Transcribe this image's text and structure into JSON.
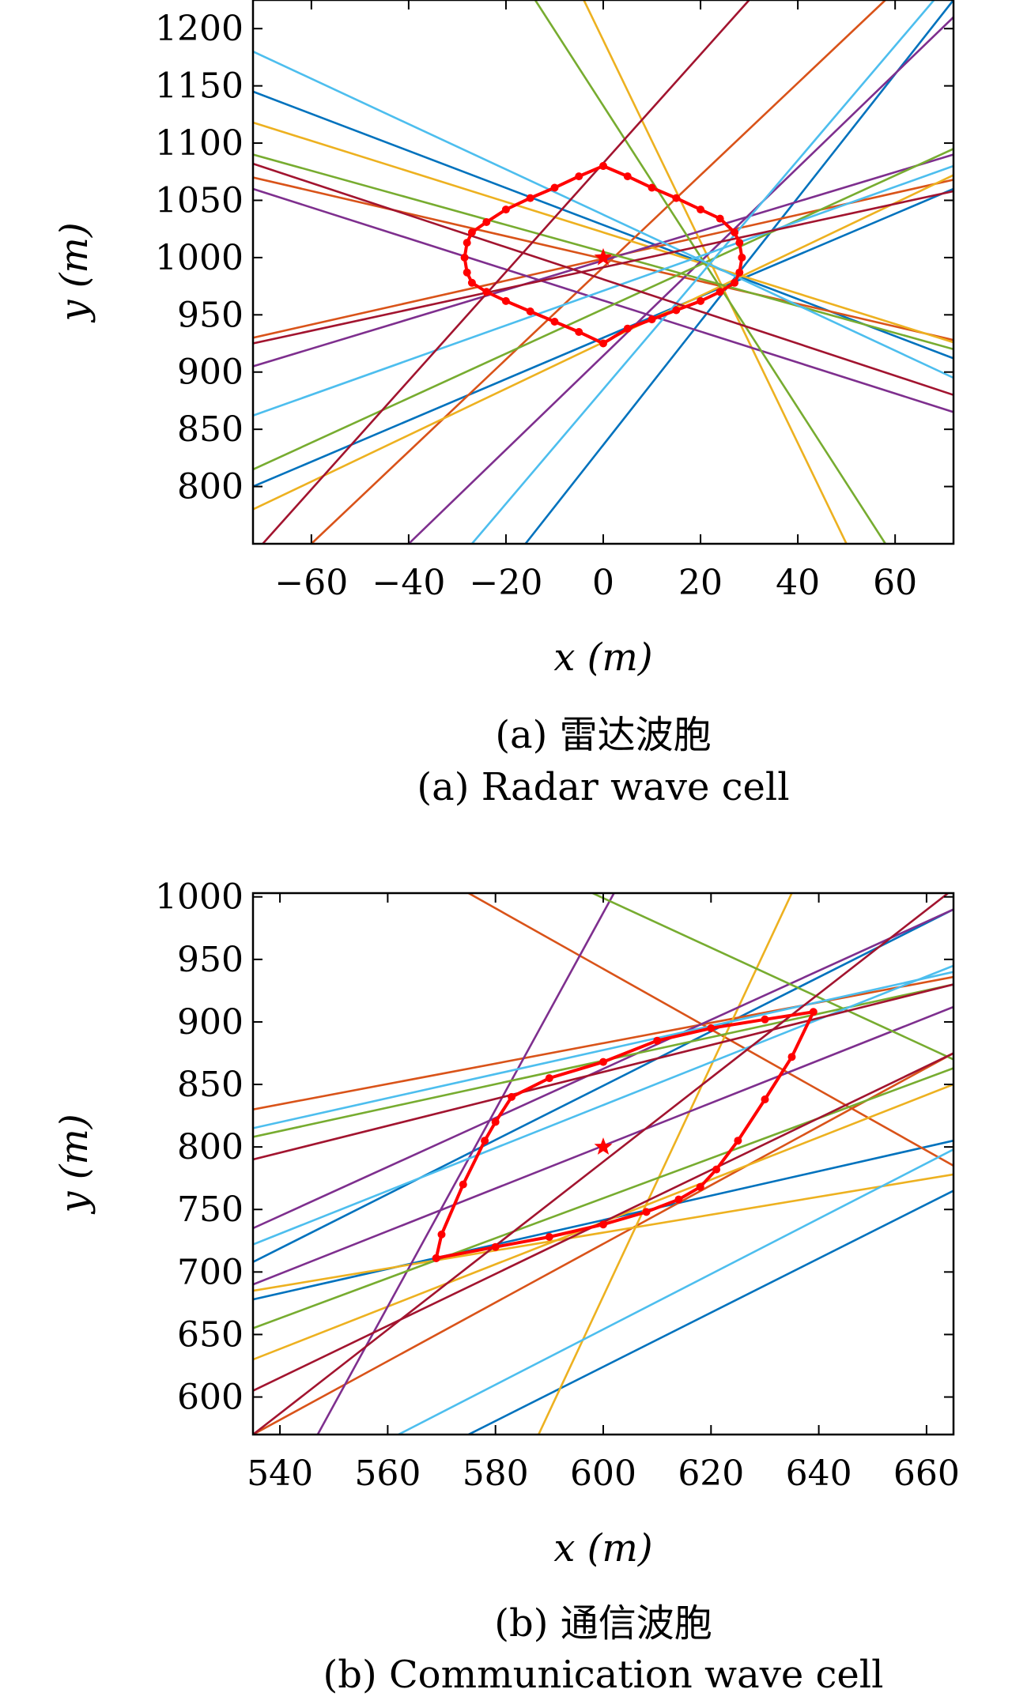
{
  "chart_data": [
    {
      "type": "line",
      "caption_cn": "(a) 雷达波胞",
      "caption_en": "(a) Radar wave cell",
      "xlabel": "x (m)",
      "ylabel": "y (m)",
      "xlim": [
        -72,
        72
      ],
      "ylim": [
        750,
        1225
      ],
      "xticks": [
        -60,
        -40,
        -20,
        0,
        20,
        40,
        60
      ],
      "xtick_labels": [
        "−60",
        "−40",
        "−20",
        "0",
        "20",
        "40",
        "60"
      ],
      "yticks": [
        800,
        850,
        900,
        950,
        1000,
        1050,
        1100,
        1150,
        1200
      ],
      "ytick_labels": [
        "800",
        "850",
        "900",
        "950",
        "1000",
        "1050",
        "1100",
        "1150",
        "1200"
      ],
      "grid": false,
      "target": {
        "x": 0,
        "y": 1000,
        "color": "#ff0000"
      },
      "boundary_color": "#ff0000",
      "boundary": [
        [
          0,
          1080
        ],
        [
          5,
          1071
        ],
        [
          10,
          1061
        ],
        [
          15,
          1052
        ],
        [
          20,
          1042
        ],
        [
          24,
          1034
        ],
        [
          27,
          1022
        ],
        [
          28,
          1013
        ],
        [
          28.5,
          1000
        ],
        [
          28,
          987
        ],
        [
          27,
          978
        ],
        [
          24,
          970
        ],
        [
          20,
          962
        ],
        [
          15,
          954
        ],
        [
          10,
          946
        ],
        [
          5,
          938
        ],
        [
          0,
          925
        ],
        [
          -5,
          935
        ],
        [
          -10,
          944
        ],
        [
          -15,
          953
        ],
        [
          -20,
          962
        ],
        [
          -24,
          970
        ],
        [
          -27,
          978
        ],
        [
          -28,
          987
        ],
        [
          -28.5,
          1000
        ],
        [
          -28,
          1013
        ],
        [
          -27,
          1022
        ],
        [
          -24,
          1031
        ],
        [
          -20,
          1042
        ],
        [
          -15,
          1052
        ],
        [
          -10,
          1061
        ],
        [
          -5,
          1071
        ],
        [
          0,
          1080
        ]
      ],
      "series": [
        {
          "color": "#0072bd",
          "values": [
            [
              -72,
              800
            ],
            [
              72,
              1060
            ]
          ]
        },
        {
          "color": "#0072bd",
          "values": [
            [
              -72,
              1145
            ],
            [
              72,
              912
            ]
          ]
        },
        {
          "color": "#0072bd",
          "values": [
            [
              -16,
              750
            ],
            [
              72,
              1225
            ]
          ]
        },
        {
          "color": "#d95319",
          "values": [
            [
              -72,
              930
            ],
            [
              72,
              1068
            ]
          ]
        },
        {
          "color": "#d95319",
          "values": [
            [
              -72,
              1070
            ],
            [
              72,
              928
            ]
          ]
        },
        {
          "color": "#d95319",
          "values": [
            [
              -60,
              750
            ],
            [
              58,
              1225
            ]
          ]
        },
        {
          "color": "#edb120",
          "values": [
            [
              -72,
              780
            ],
            [
              72,
              1072
            ]
          ]
        },
        {
          "color": "#edb120",
          "values": [
            [
              -72,
              1118
            ],
            [
              72,
              926
            ]
          ]
        },
        {
          "color": "#edb120",
          "values": [
            [
              -4,
              1225
            ],
            [
              50,
              750
            ]
          ]
        },
        {
          "color": "#7e2f8e",
          "values": [
            [
              -72,
              905
            ],
            [
              72,
              1090
            ]
          ]
        },
        {
          "color": "#7e2f8e",
          "values": [
            [
              -72,
              1060
            ],
            [
              72,
              865
            ]
          ]
        },
        {
          "color": "#7e2f8e",
          "values": [
            [
              -40,
              750
            ],
            [
              72,
              1210
            ]
          ]
        },
        {
          "color": "#77ac30",
          "values": [
            [
              -72,
              815
            ],
            [
              72,
              1095
            ]
          ]
        },
        {
          "color": "#77ac30",
          "values": [
            [
              -72,
              1090
            ],
            [
              72,
              920
            ]
          ]
        },
        {
          "color": "#77ac30",
          "values": [
            [
              -14,
              1225
            ],
            [
              58,
              750
            ]
          ]
        },
        {
          "color": "#4dbeee",
          "values": [
            [
              -72,
              862
            ],
            [
              72,
              1080
            ]
          ]
        },
        {
          "color": "#4dbeee",
          "values": [
            [
              -72,
              1180
            ],
            [
              72,
              895
            ]
          ]
        },
        {
          "color": "#4dbeee",
          "values": [
            [
              -27,
              750
            ],
            [
              68,
              1225
            ]
          ]
        },
        {
          "color": "#a2142f",
          "values": [
            [
              -72,
              925
            ],
            [
              72,
              1058
            ]
          ]
        },
        {
          "color": "#a2142f",
          "values": [
            [
              -72,
              1082
            ],
            [
              72,
              880
            ]
          ]
        },
        {
          "color": "#a2142f",
          "values": [
            [
              -70,
              750
            ],
            [
              30,
              1225
            ]
          ]
        }
      ]
    },
    {
      "type": "line",
      "caption_cn": "(b) 通信波胞",
      "caption_en": "(b) Communication wave cell",
      "xlabel": "x (m)",
      "ylabel": "y (m)",
      "xlim": [
        535,
        665
      ],
      "ylim": [
        570,
        1003
      ],
      "xticks": [
        540,
        560,
        580,
        600,
        620,
        640,
        660
      ],
      "xtick_labels": [
        "540",
        "560",
        "580",
        "600",
        "620",
        "640",
        "660"
      ],
      "yticks": [
        600,
        650,
        700,
        750,
        800,
        850,
        900,
        950,
        1000
      ],
      "ytick_labels": [
        "600",
        "650",
        "700",
        "750",
        "800",
        "850",
        "900",
        "950",
        "1000"
      ],
      "grid": false,
      "target": {
        "x": 600,
        "y": 800,
        "color": "#ff0000"
      },
      "boundary_color": "#ff0000",
      "boundary": [
        [
          569,
          711
        ],
        [
          580,
          720
        ],
        [
          590,
          728
        ],
        [
          600,
          738
        ],
        [
          608,
          748
        ],
        [
          614,
          758
        ],
        [
          618,
          768
        ],
        [
          621,
          782
        ],
        [
          625,
          805
        ],
        [
          630,
          838
        ],
        [
          635,
          872
        ],
        [
          639,
          908
        ],
        [
          630,
          902
        ],
        [
          620,
          895
        ],
        [
          610,
          885
        ],
        [
          600,
          868
        ],
        [
          590,
          855
        ],
        [
          583,
          840
        ],
        [
          580,
          820
        ],
        [
          578,
          805
        ],
        [
          574,
          770
        ],
        [
          570,
          730
        ],
        [
          569,
          711
        ]
      ],
      "series": [
        {
          "color": "#0072bd",
          "values": [
            [
              535,
              678
            ],
            [
              665,
              805
            ]
          ]
        },
        {
          "color": "#0072bd",
          "values": [
            [
              535,
              708
            ],
            [
              665,
              990
            ]
          ]
        },
        {
          "color": "#0072bd",
          "values": [
            [
              575,
              570
            ],
            [
              665,
              765
            ]
          ]
        },
        {
          "color": "#d95319",
          "values": [
            [
              535,
              830
            ],
            [
              665,
              936
            ]
          ]
        },
        {
          "color": "#d95319",
          "values": [
            [
              535,
              570
            ],
            [
              665,
              875
            ]
          ]
        },
        {
          "color": "#d95319",
          "values": [
            [
              575,
              1003
            ],
            [
              665,
              785
            ]
          ]
        },
        {
          "color": "#edb120",
          "values": [
            [
              535,
              685
            ],
            [
              665,
              778
            ]
          ]
        },
        {
          "color": "#edb120",
          "values": [
            [
              535,
              630
            ],
            [
              665,
              850
            ]
          ]
        },
        {
          "color": "#edb120",
          "values": [
            [
              588,
              570
            ],
            [
              635,
              1003
            ]
          ]
        },
        {
          "color": "#7e2f8e",
          "values": [
            [
              535,
              735
            ],
            [
              665,
              990
            ]
          ]
        },
        {
          "color": "#7e2f8e",
          "values": [
            [
              547,
              570
            ],
            [
              602,
              1003
            ]
          ]
        },
        {
          "color": "#7e2f8e",
          "values": [
            [
              535,
              690
            ],
            [
              665,
              912
            ]
          ]
        },
        {
          "color": "#77ac30",
          "values": [
            [
              535,
              808
            ],
            [
              665,
              930
            ]
          ]
        },
        {
          "color": "#77ac30",
          "values": [
            [
              535,
              655
            ],
            [
              665,
              863
            ]
          ]
        },
        {
          "color": "#77ac30",
          "values": [
            [
              598,
              1003
            ],
            [
              665,
              870
            ]
          ]
        },
        {
          "color": "#4dbeee",
          "values": [
            [
              535,
              815
            ],
            [
              665,
              940
            ]
          ]
        },
        {
          "color": "#4dbeee",
          "values": [
            [
              535,
              722
            ],
            [
              665,
              945
            ]
          ]
        },
        {
          "color": "#4dbeee",
          "values": [
            [
              562,
              570
            ],
            [
              665,
              798
            ]
          ]
        },
        {
          "color": "#a2142f",
          "values": [
            [
              535,
              790
            ],
            [
              665,
              930
            ]
          ]
        },
        {
          "color": "#a2142f",
          "values": [
            [
              535,
              605
            ],
            [
              665,
              875
            ]
          ]
        },
        {
          "color": "#a2142f",
          "values": [
            [
              535,
              570
            ],
            [
              664,
              1003
            ]
          ]
        }
      ]
    }
  ]
}
